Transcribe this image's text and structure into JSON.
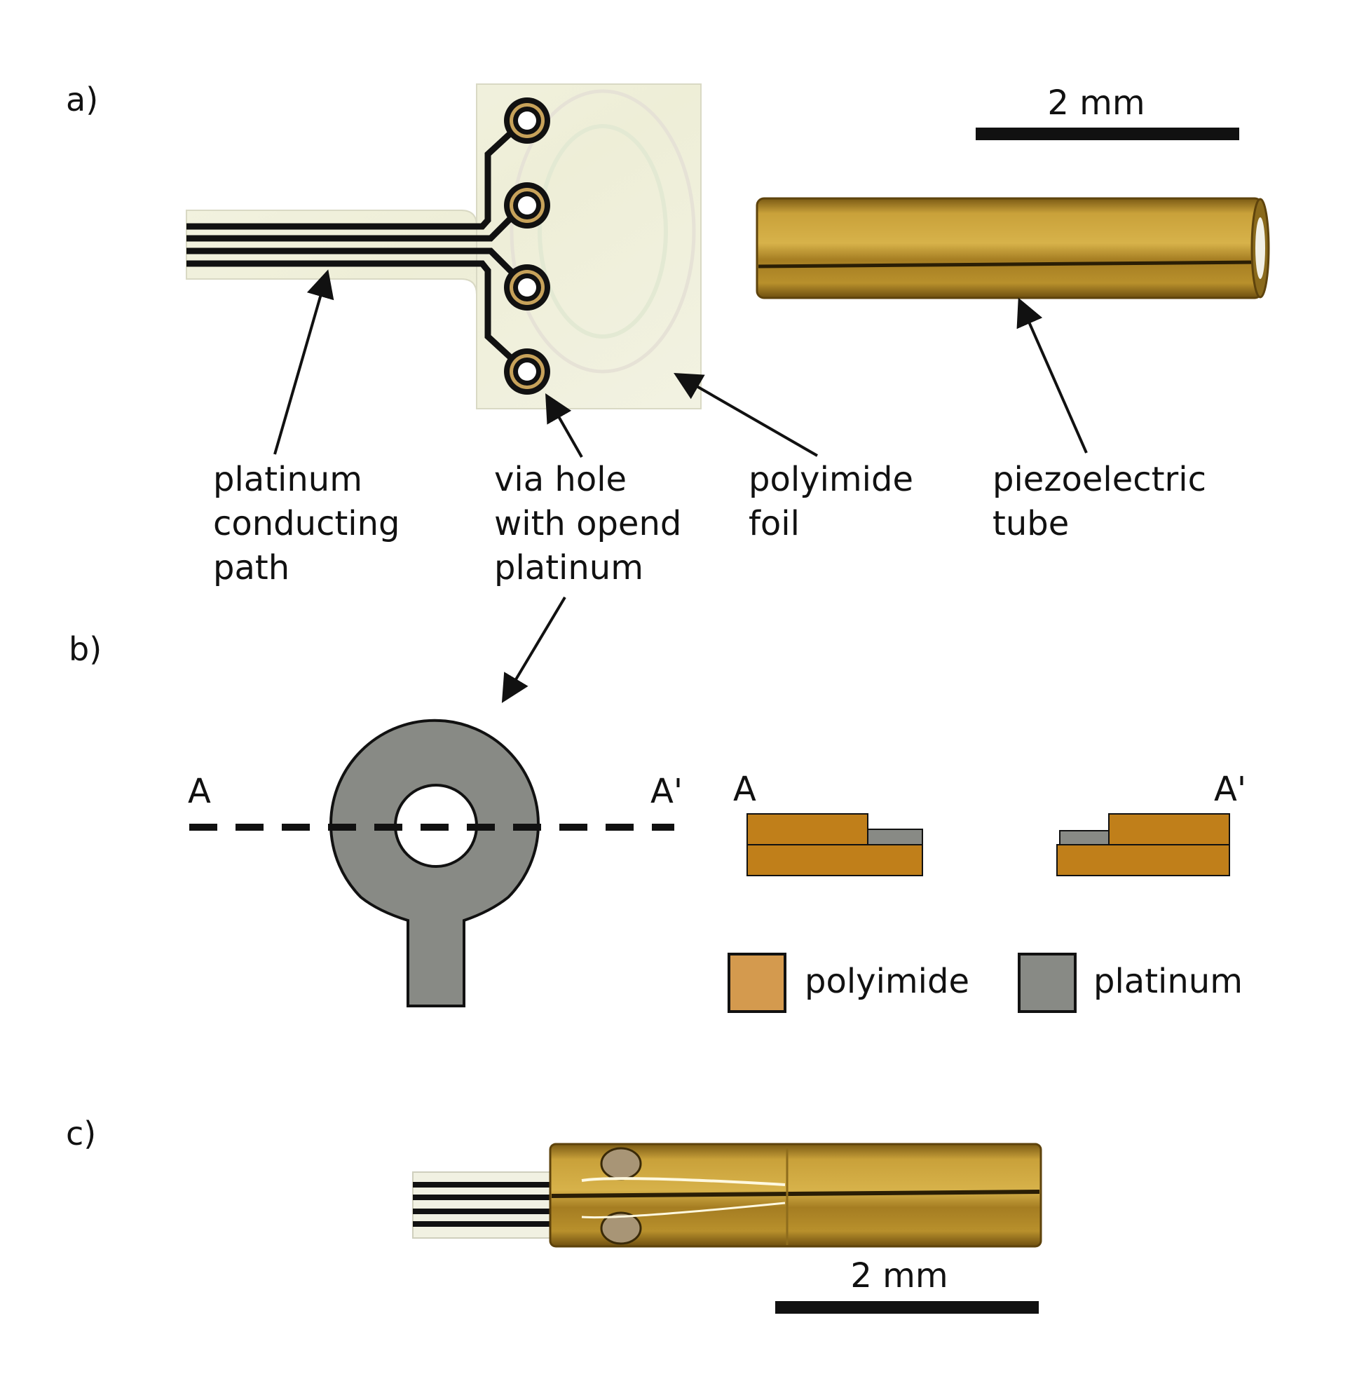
{
  "panels": {
    "a": "a)",
    "b": "b)",
    "c": "c)"
  },
  "scale_bar_a": "2 mm",
  "scale_bar_c": "2 mm",
  "annotations": {
    "conducting_path": [
      "platinum",
      "conducting",
      "path"
    ],
    "via_hole": [
      "via hole",
      "with opend",
      "platinum"
    ],
    "foil": [
      "polyimide",
      "foil"
    ],
    "tube": [
      "piezoelectric",
      "tube"
    ]
  },
  "section": {
    "start": "A",
    "end": "A'",
    "cs_start": "A",
    "cs_end": "A'"
  },
  "legend": [
    {
      "label": "polyimide",
      "color": "#d49a4e"
    },
    {
      "label": "platinum",
      "color": "#888a85"
    }
  ],
  "colors": {
    "polyimide_cross_section": "#c07f1a",
    "platinum": "#888a85",
    "tube_gold": "#b88f2a",
    "foil": "#f2f2df"
  }
}
